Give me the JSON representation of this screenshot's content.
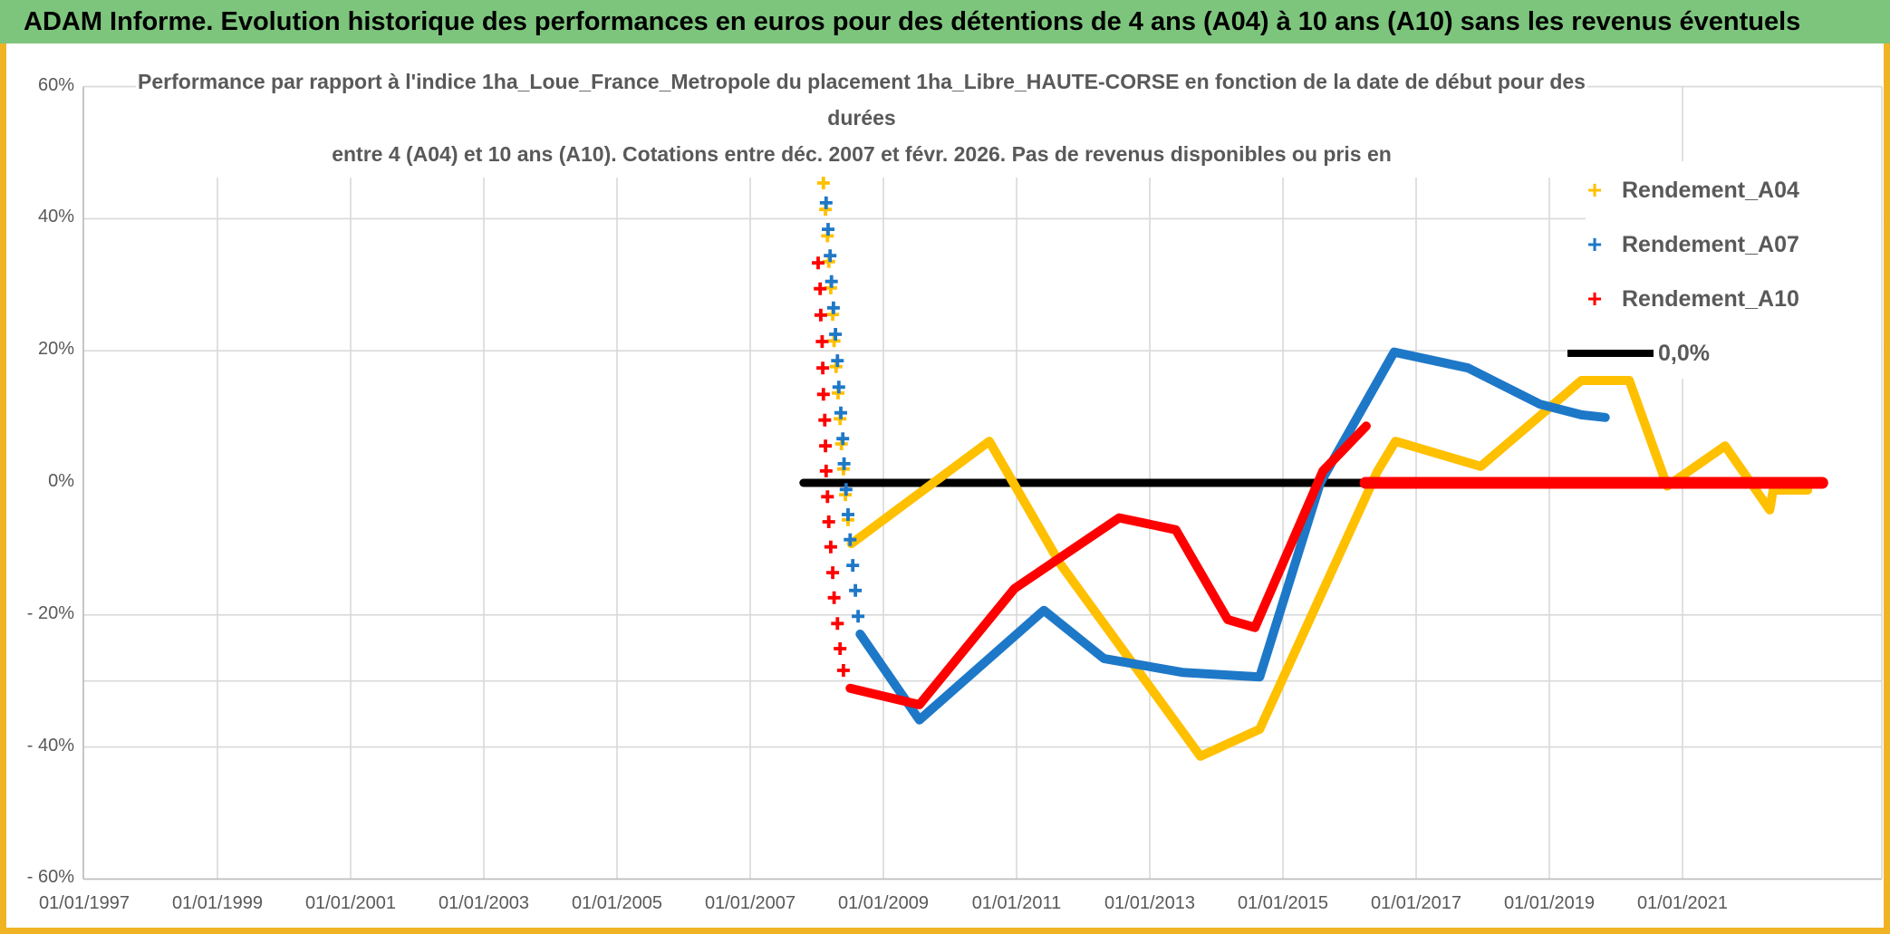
{
  "header": {
    "title": "ADAM Informe. Evolution historique des performances en euros pour des détentions de 4 ans (A04) à 10 ans (A10) sans les revenus éventuels",
    "bg_color": "#7dc57d"
  },
  "frame_color": "#f0b323",
  "chart_data": {
    "type": "line",
    "title_lines": [
      "Performance par rapport à l'indice 1ha_Loue_France_Metropole  du placement 1ha_Libre_HAUTE-CORSE en fonction de la date de début pour des",
      "durées",
      "entre 4 (A04) et 10 ans (A10). Cotations entre déc. 2007 et févr. 2026. Pas de revenus disponibles ou pris en"
    ],
    "x_axis": {
      "tick_years": [
        1997,
        1999,
        2001,
        2003,
        2005,
        2007,
        2009,
        2011,
        2013,
        2015,
        2017,
        2019,
        2021
      ],
      "tick_labels": [
        "01/01/1997",
        "01/01/1999",
        "01/01/2001",
        "01/01/2003",
        "01/01/2005",
        "01/01/2007",
        "01/01/2009",
        "01/01/2011",
        "01/01/2013",
        "01/01/2015",
        "01/01/2017",
        "01/01/2019",
        "01/01/2021"
      ],
      "grid_years": [
        1999,
        2001,
        2003,
        2005,
        2007,
        2009,
        2011,
        2013,
        2015,
        2017,
        2019,
        2021
      ],
      "min": 1997.0,
      "max": 2024.0
    },
    "y_axis": {
      "ticks": [
        {
          "label": "60%",
          "value": 60
        },
        {
          "label": "40%",
          "value": 40
        },
        {
          "label": "20%",
          "value": 20
        },
        {
          "label": "0%",
          "value": 0
        },
        {
          "label": "- 20%",
          "value": -20
        },
        {
          "label": "- 40%",
          "value": -40
        },
        {
          "label": "- 60%",
          "value": -60
        }
      ],
      "grid_values": [
        60,
        40,
        20,
        -20,
        -30,
        -40
      ],
      "min": -60,
      "max": 60
    },
    "grid_color": "#d9d9d9",
    "axis_color": "#bfbfbf",
    "legend": [
      {
        "label": "Rendement_A04",
        "color": "#FFC000",
        "swatch": "plus"
      },
      {
        "label": "Rendement_A07",
        "color": "#1E78C8",
        "swatch": "plus"
      },
      {
        "label": "Rendement_A10",
        "color": "#FE0000",
        "swatch": "plus"
      },
      {
        "label": "0,0%",
        "color": "#000000",
        "swatch": "line"
      }
    ],
    "series": [
      {
        "name": "zero-line",
        "label": "0,0%",
        "color": "#000000",
        "width": 9,
        "points": [
          [
            2007.8,
            0
          ],
          [
            2016.28,
            0
          ]
        ]
      },
      {
        "name": "rendement-a04-line",
        "label": "Rendement_A04",
        "color": "#FFC000",
        "width": 10,
        "points": [
          [
            2008.52,
            -9.2
          ],
          [
            2010.59,
            6.3
          ],
          [
            2011.65,
            -12.2
          ],
          [
            2013.76,
            -41.4
          ],
          [
            2014.65,
            -37.3
          ],
          [
            2016.42,
            1.8
          ],
          [
            2016.69,
            6.3
          ],
          [
            2017.97,
            2.5
          ],
          [
            2019.48,
            15.5
          ],
          [
            2020.2,
            15.5
          ],
          [
            2020.77,
            -0.5
          ],
          [
            2021.64,
            5.6
          ],
          [
            2022.31,
            -4.1
          ],
          [
            2022.36,
            -1.1
          ],
          [
            2022.88,
            -1.1
          ]
        ]
      },
      {
        "name": "rendement-a07-line",
        "label": "Rendement_A07",
        "color": "#1E78C8",
        "width": 10,
        "points": [
          [
            2008.65,
            -22.9
          ],
          [
            2009.54,
            -35.9
          ],
          [
            2011.41,
            -19.3
          ],
          [
            2012.31,
            -26.6
          ],
          [
            2013.49,
            -28.7
          ],
          [
            2014.65,
            -29.4
          ],
          [
            2015.56,
            0
          ],
          [
            2016.67,
            19.8
          ],
          [
            2017.78,
            17.4
          ],
          [
            2018.86,
            11.9
          ],
          [
            2019.48,
            10.3
          ],
          [
            2019.84,
            9.9
          ]
        ]
      },
      {
        "name": "rendement-a10-line",
        "label": "Rendement_A10",
        "color": "#FE0000",
        "width": 10,
        "points": [
          [
            2008.5,
            -31.1
          ],
          [
            2009.54,
            -33.6
          ],
          [
            2010.97,
            -16.0
          ],
          [
            2012.54,
            -5.3
          ],
          [
            2013.39,
            -7.1
          ],
          [
            2014.17,
            -20.7
          ],
          [
            2014.58,
            -21.9
          ],
          [
            2015.6,
            1.8
          ],
          [
            2016.25,
            8.6
          ]
        ]
      },
      {
        "name": "zero-line-red-extension",
        "label": "",
        "color": "#FE0000",
        "width": 13,
        "points": [
          [
            2016.24,
            0
          ],
          [
            2023.1,
            0
          ]
        ]
      }
    ],
    "marker_series": [
      {
        "name": "rendement-a04-markers",
        "color": "#FFC000",
        "points": [
          [
            2008.1,
            45.4
          ],
          [
            2008.13,
            41.4
          ],
          [
            2008.16,
            37.4
          ],
          [
            2008.18,
            33.5
          ],
          [
            2008.21,
            29.5
          ],
          [
            2008.24,
            25.5
          ],
          [
            2008.26,
            21.5
          ],
          [
            2008.29,
            17.6
          ],
          [
            2008.32,
            13.6
          ],
          [
            2008.35,
            9.7
          ],
          [
            2008.37,
            5.9
          ],
          [
            2008.4,
            2.1
          ],
          [
            2008.43,
            -1.8
          ],
          [
            2008.47,
            -5.6
          ]
        ]
      },
      {
        "name": "rendement-a07-markers",
        "color": "#1E78C8",
        "points": [
          [
            2008.14,
            42.4
          ],
          [
            2008.17,
            38.4
          ],
          [
            2008.2,
            34.4
          ],
          [
            2008.22,
            30.5
          ],
          [
            2008.25,
            26.5
          ],
          [
            2008.28,
            22.5
          ],
          [
            2008.31,
            18.5
          ],
          [
            2008.33,
            14.5
          ],
          [
            2008.36,
            10.6
          ],
          [
            2008.39,
            6.7
          ],
          [
            2008.41,
            2.9
          ],
          [
            2008.44,
            -1.0
          ],
          [
            2008.47,
            -4.8
          ],
          [
            2008.5,
            -8.6
          ],
          [
            2008.54,
            -12.5
          ],
          [
            2008.58,
            -16.3
          ],
          [
            2008.62,
            -20.2
          ]
        ]
      },
      {
        "name": "rendement-a10-markers",
        "color": "#FE0000",
        "points": [
          [
            2008.02,
            33.3
          ],
          [
            2008.05,
            29.4
          ],
          [
            2008.06,
            25.4
          ],
          [
            2008.08,
            21.4
          ],
          [
            2008.09,
            17.4
          ],
          [
            2008.1,
            13.4
          ],
          [
            2008.12,
            9.5
          ],
          [
            2008.13,
            5.6
          ],
          [
            2008.14,
            1.8
          ],
          [
            2008.16,
            -2.1
          ],
          [
            2008.18,
            -5.9
          ],
          [
            2008.21,
            -9.7
          ],
          [
            2008.24,
            -13.6
          ],
          [
            2008.26,
            -17.4
          ],
          [
            2008.31,
            -21.3
          ],
          [
            2008.35,
            -25.1
          ],
          [
            2008.4,
            -28.4
          ]
        ]
      }
    ]
  }
}
